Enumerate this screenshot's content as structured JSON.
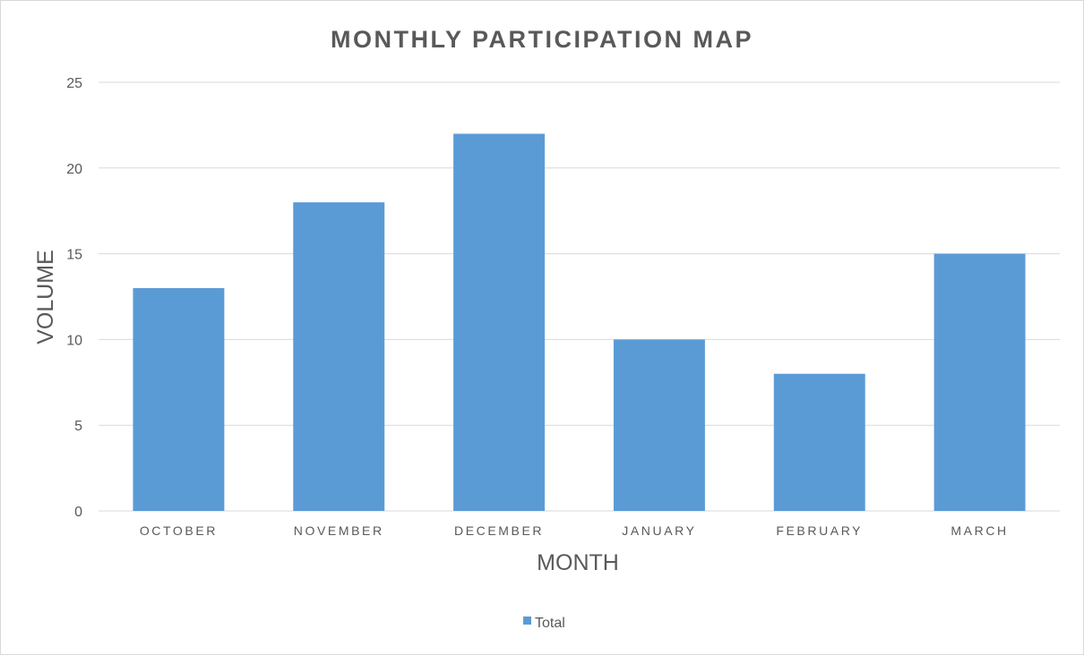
{
  "chart_data": {
    "type": "bar",
    "title": "MONTHLY PARTICIPATION MAP",
    "xlabel": "MONTH",
    "ylabel": "VOLUME",
    "categories": [
      "OCTOBER",
      "NOVEMBER",
      "DECEMBER",
      "JANUARY",
      "FEBRUARY",
      "MARCH"
    ],
    "series": [
      {
        "name": "Total",
        "values": [
          13,
          18,
          22,
          10,
          8,
          15
        ],
        "color": "#5b9bd5"
      }
    ],
    "ylim": [
      0,
      25
    ],
    "yticks": [
      0,
      5,
      10,
      15,
      20,
      25
    ],
    "grid": true,
    "legend_position": "bottom",
    "colors": {
      "gridline": "#d9d9d9",
      "text": "#595959"
    }
  }
}
